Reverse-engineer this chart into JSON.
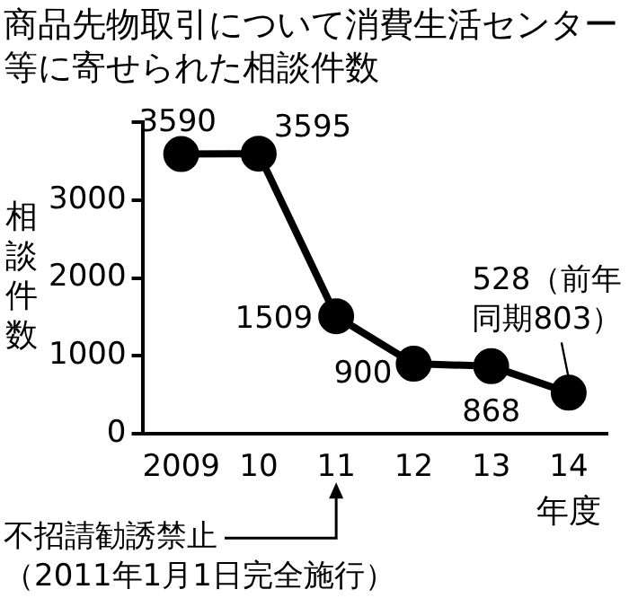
{
  "chart_data": {
    "type": "line",
    "title": "商品先物取引について消費生活センター等に寄せられた相談件数",
    "ylabel": "相談件数",
    "xlabel": "年度",
    "categories": [
      "2009",
      "10",
      "11",
      "12",
      "13",
      "14"
    ],
    "values": [
      3590,
      3595,
      1509,
      900,
      868,
      528
    ],
    "value_labels": [
      "3590",
      "3595",
      "1509",
      "900",
      "868",
      "528（前年同期803）"
    ],
    "color": "#000000",
    "marker": "circle",
    "legend": false,
    "grid": false,
    "ylim": [
      0,
      4000
    ],
    "yticks": [
      0,
      1000,
      2000,
      3000,
      {
        "value": 4000,
        "label": null
      }
    ],
    "annotations": [
      "不招請勧誘禁止（2011年1月1日完全施行）"
    ]
  }
}
